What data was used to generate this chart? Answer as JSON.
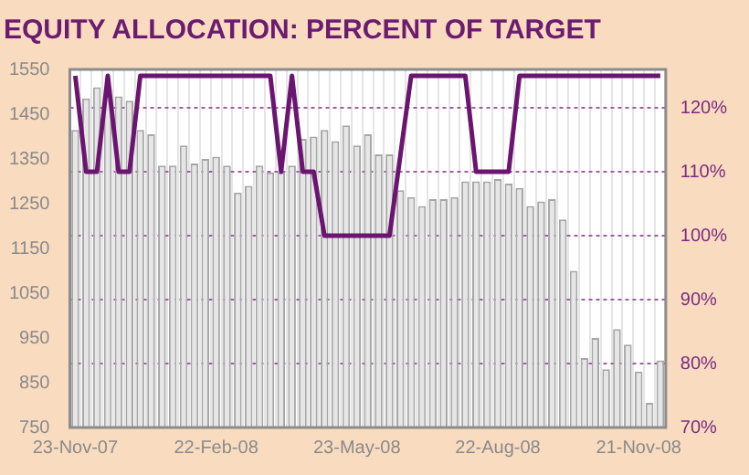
{
  "chart_data": {
    "type": "bar",
    "title": "EQUITY ALLOCATION: PERCENT OF TARGET",
    "categories": [
      "23-Nov-07",
      null,
      null,
      null,
      null,
      null,
      null,
      null,
      null,
      null,
      null,
      null,
      null,
      "22-Feb-08",
      null,
      null,
      null,
      null,
      null,
      null,
      null,
      null,
      null,
      null,
      null,
      null,
      "23-May-08",
      null,
      null,
      null,
      null,
      null,
      null,
      null,
      null,
      null,
      null,
      null,
      null,
      "22-Aug-08",
      null,
      null,
      null,
      null,
      null,
      null,
      null,
      null,
      null,
      null,
      null,
      null,
      "21-Nov-08",
      null,
      null
    ],
    "series": [
      {
        "color": "#e6e6e6",
        "values": [
          1415,
          1485,
          1510,
          1490,
          1490,
          1480,
          1415,
          1405,
          1335,
          1335,
          1380,
          1340,
          1350,
          1355,
          1335,
          1275,
          1290,
          1335,
          1320,
          1320,
          1335,
          1395,
          1400,
          1415,
          1390,
          1425,
          1380,
          1405,
          1360,
          1360,
          1280,
          1265,
          1245,
          1260,
          1260,
          1265,
          1300,
          1300,
          1300,
          1305,
          1295,
          1285,
          1245,
          1255,
          1260,
          1215,
          1100,
          905,
          950,
          880,
          970,
          935,
          875,
          805,
          900
        ]
      },
      {
        "type": "line",
        "axis": "y2",
        "color": "#6b1570",
        "values": [
          125,
          110,
          110,
          125,
          110,
          110,
          125,
          125,
          125,
          125,
          125,
          125,
          125,
          125,
          125,
          125,
          125,
          125,
          125,
          110,
          125,
          110,
          110,
          100,
          100,
          100,
          100,
          100,
          100,
          100,
          112.5,
          125,
          125,
          125,
          125,
          125,
          125,
          110,
          110,
          110,
          110,
          125,
          125,
          125,
          125,
          125,
          125,
          125,
          125,
          125,
          125,
          125,
          125,
          125,
          125
        ]
      }
    ],
    "ylim": [
      750,
      1550
    ],
    "yticks": [
      750,
      850,
      950,
      1050,
      1150,
      1250,
      1350,
      1450,
      1550
    ],
    "y2lim": [
      70,
      126
    ],
    "y2ticks": [
      {
        "value": 70,
        "label": "70%"
      },
      {
        "value": 80,
        "label": "80%"
      },
      {
        "value": 90,
        "label": "90%"
      },
      {
        "value": 100,
        "label": "100%"
      },
      {
        "value": 110,
        "label": "110%"
      },
      {
        "value": 120,
        "label": "120%"
      }
    ],
    "grid": true,
    "legend": false,
    "marker": "none"
  }
}
